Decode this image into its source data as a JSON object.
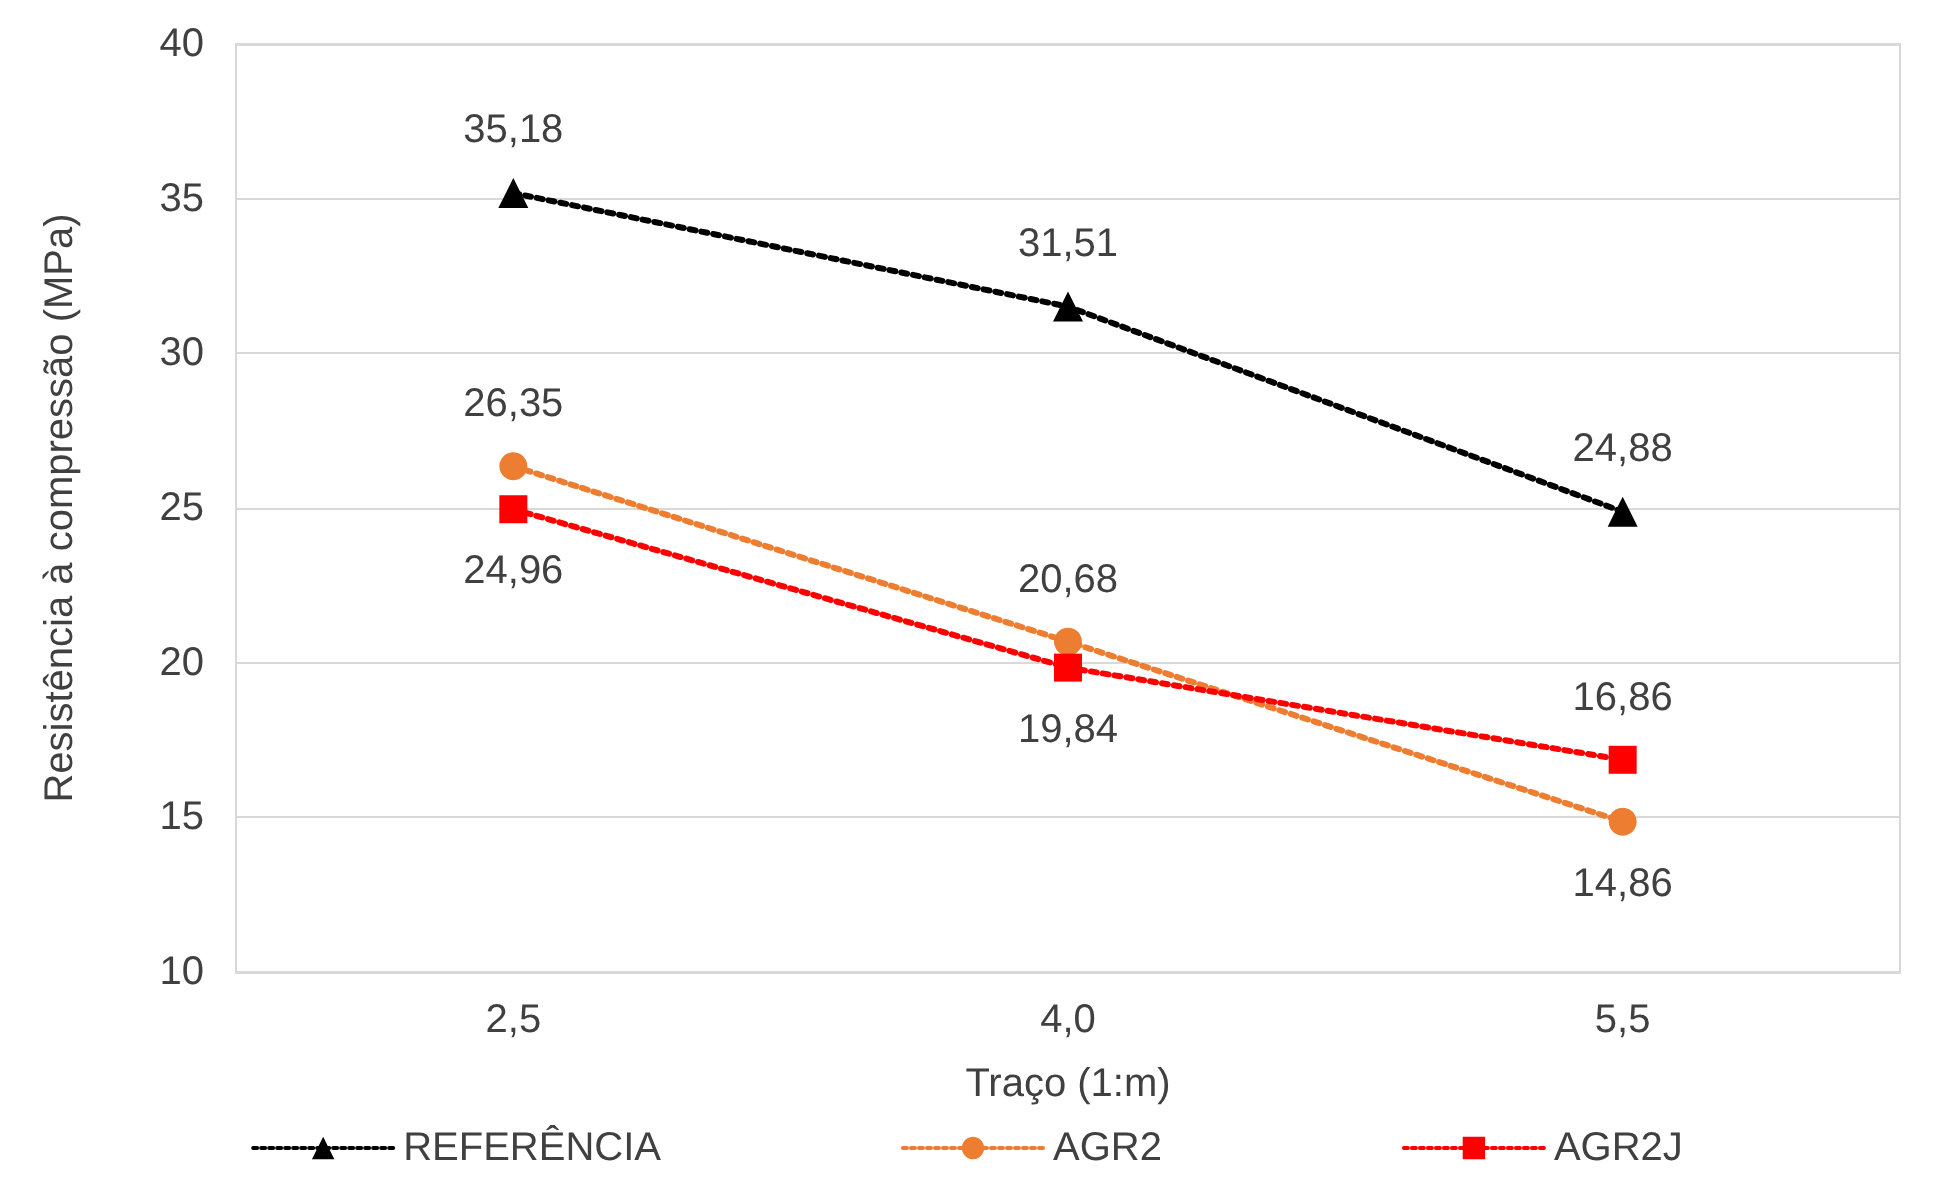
{
  "chart_data": {
    "type": "line",
    "xlabel": "Traço (1:m)",
    "ylabel": "Resistência à compressão (MPa)",
    "categories": [
      "2,5",
      "4,0",
      "5,5"
    ],
    "series": [
      {
        "name": "REFERÊNCIA",
        "color": "#000000",
        "marker": "triangle",
        "values": [
          35.18,
          31.51,
          24.88
        ],
        "value_labels": [
          "35,18",
          "31,51",
          "24,88"
        ]
      },
      {
        "name": "AGR2",
        "color": "#ed7d31",
        "marker": "circle",
        "values": [
          26.35,
          20.68,
          14.86
        ],
        "value_labels": [
          "26,35",
          "20,68",
          "14,86"
        ]
      },
      {
        "name": "AGR2J",
        "color": "#ff0000",
        "marker": "square",
        "values": [
          24.96,
          19.84,
          16.86
        ],
        "value_labels": [
          "24,96",
          "19,84",
          "16,86"
        ]
      }
    ],
    "ylim": [
      10,
      40
    ],
    "yticks": [
      10,
      15,
      20,
      25,
      30,
      35,
      40
    ],
    "grid": "y",
    "legend": "bottom",
    "line_style": "dotted"
  }
}
